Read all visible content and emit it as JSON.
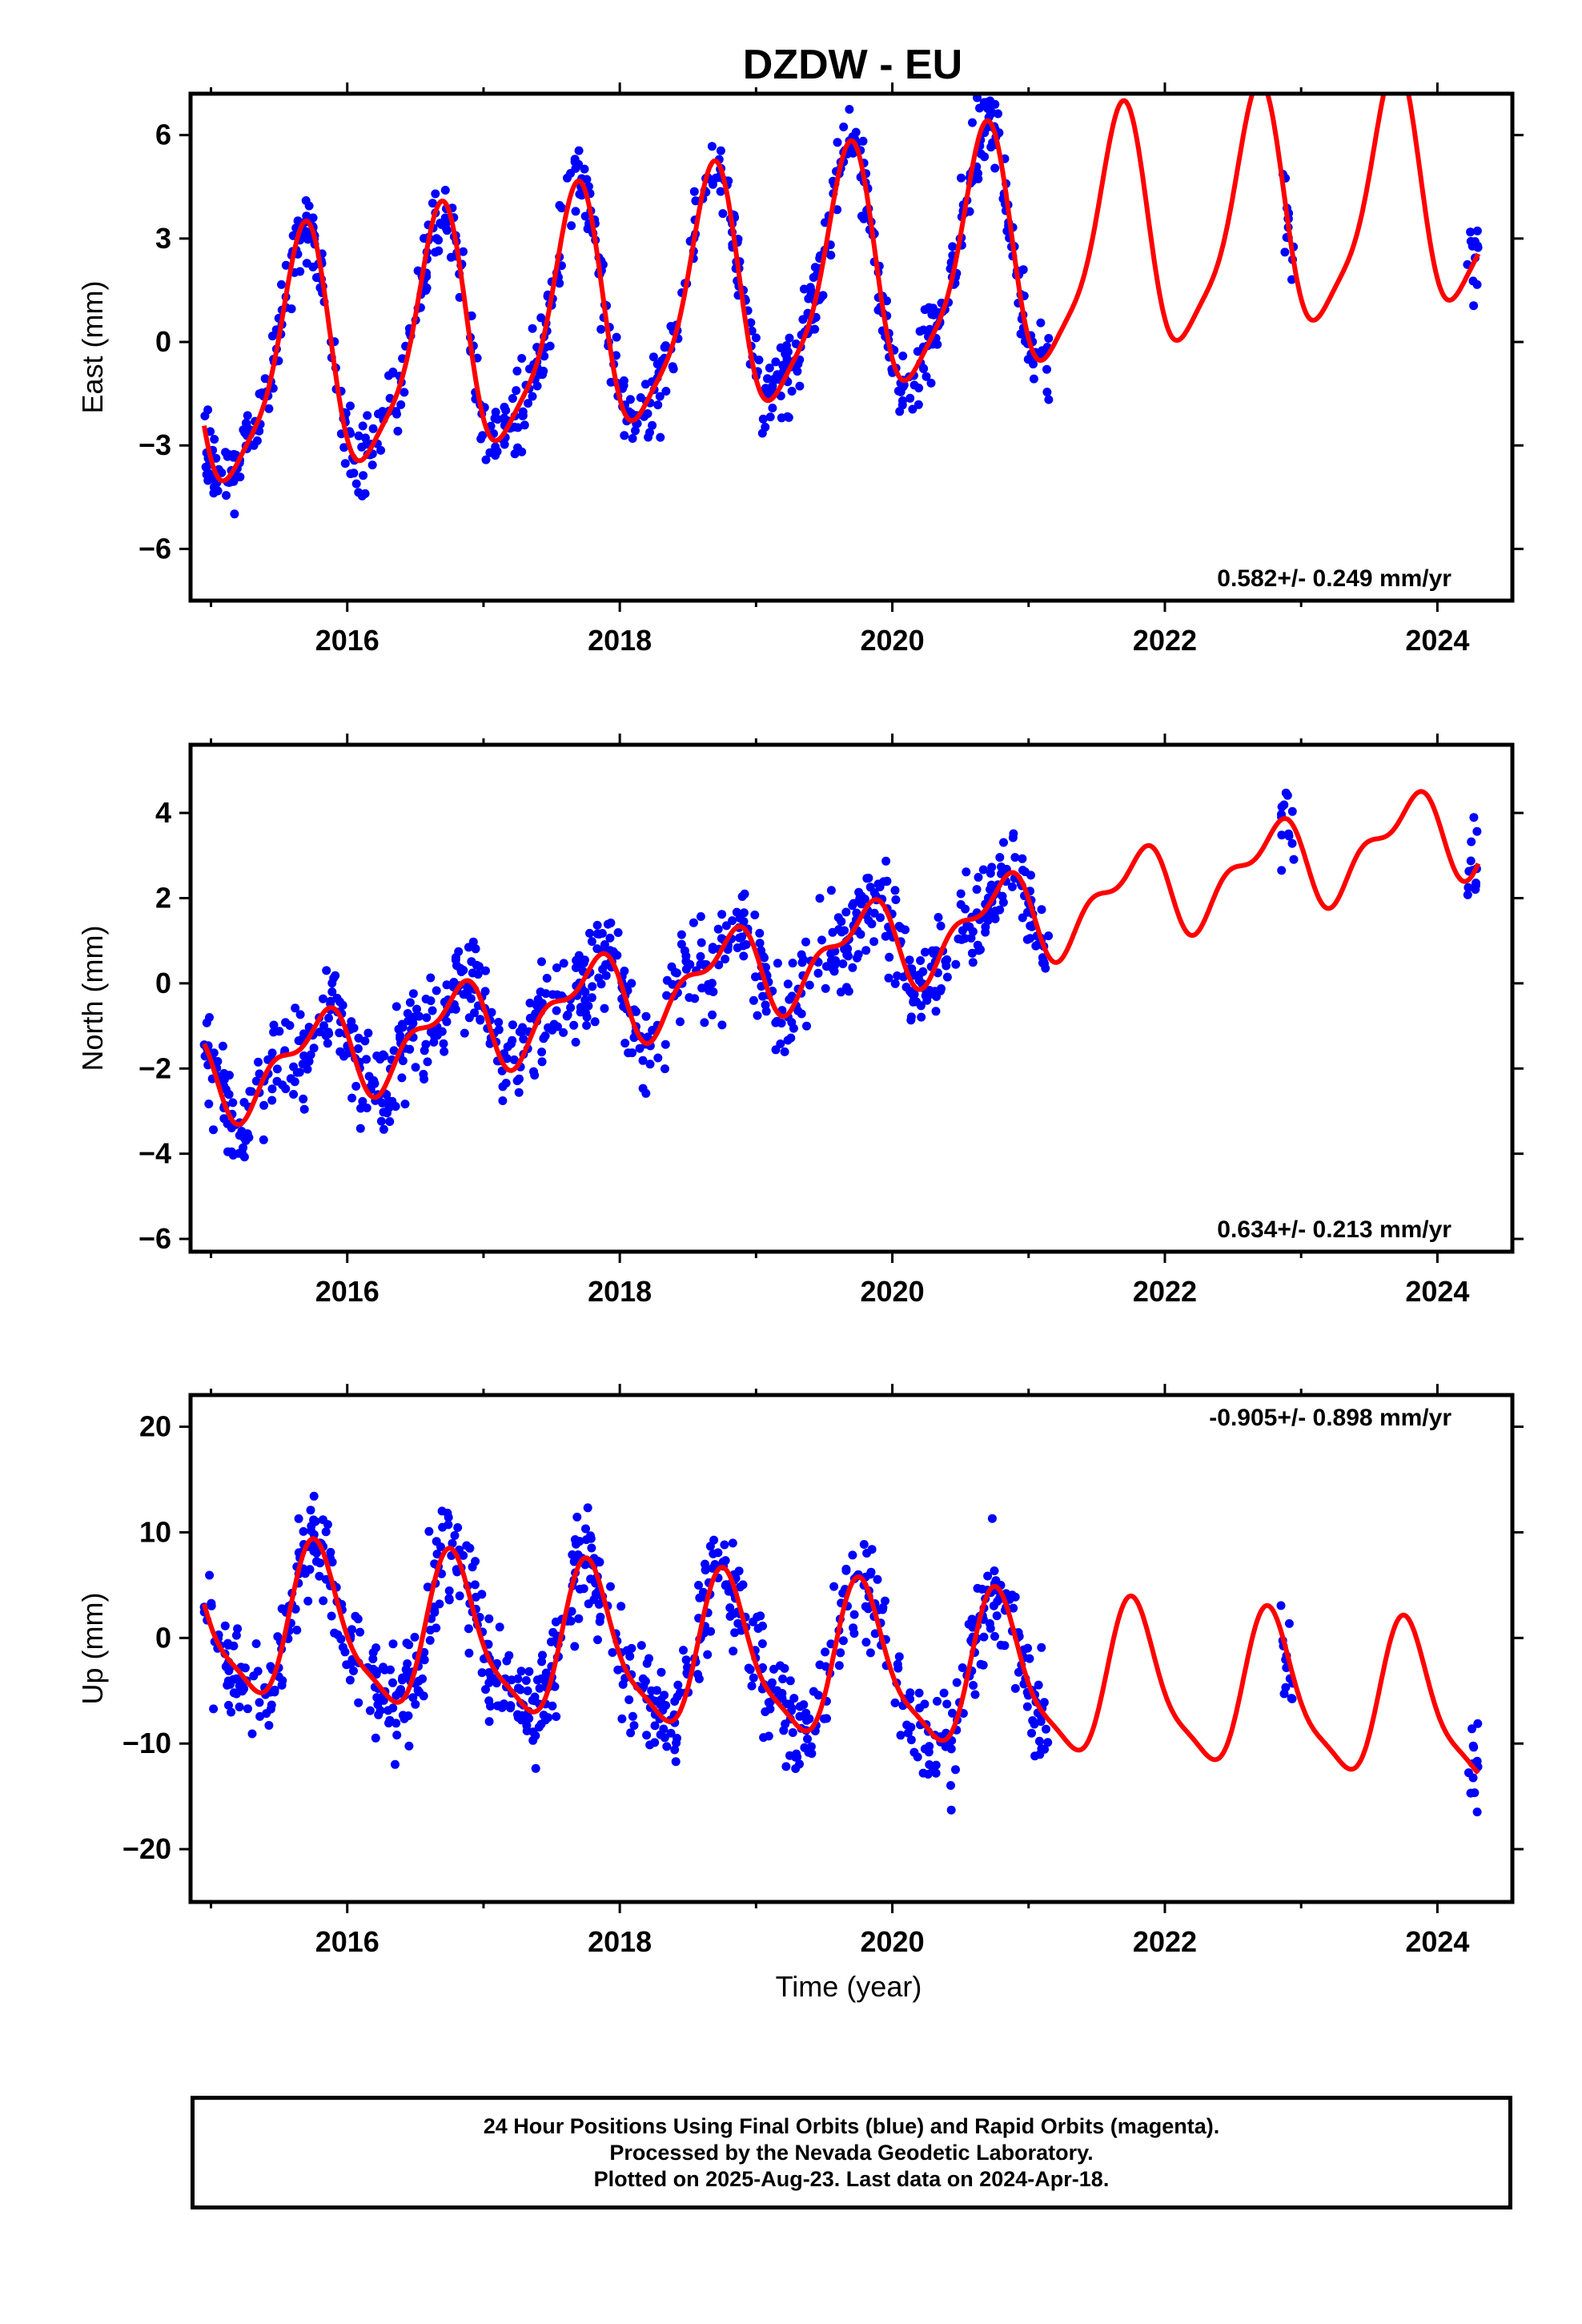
{
  "title": "DZDW - EU",
  "xlabel": "Time (year)",
  "footer": {
    "line1": "24 Hour Positions Using Final Orbits (blue) and Rapid Orbits (magenta).",
    "line2": "Processed by the Nevada Geodetic Laboratory.",
    "line3": "Plotted on 2025-Aug-23. Last data on 2024-Apr-18."
  },
  "colors": {
    "points": "#0000ff",
    "fit": "#ff0000",
    "frame": "#000000"
  },
  "chart_data": [
    {
      "type": "scatter",
      "ylabel": "East (mm)",
      "rate_label": "0.582+/- 0.249 mm/yr",
      "rate_position": "bottom-right",
      "xlim": [
        2014.85,
        2024.55
      ],
      "ylim": [
        -7.5,
        7.2
      ],
      "xticks": [
        2016,
        2018,
        2020,
        2022,
        2024
      ],
      "yticks": [
        -6,
        -3,
        0,
        3,
        6
      ],
      "series": [
        {
          "kind": "points",
          "segments": [
            [
              2014.95,
              2021.15
            ],
            [
              2022.85,
              2022.95
            ],
            [
              2024.22,
              2024.3
            ]
          ],
          "trend": {
            "a": -1.0,
            "rate": 0.582
          },
          "annual": [
            3.4,
            0.42
          ],
          "noise": 1.0
        },
        {
          "kind": "fit",
          "t_range": [
            2014.95,
            2024.3
          ],
          "trend": {
            "a": -1.0,
            "rate": 0.582
          },
          "annual": [
            3.4,
            0.42
          ],
          "semi": [
            0.8,
            0.1
          ]
        }
      ]
    },
    {
      "type": "scatter",
      "ylabel": "North (mm)",
      "rate_label": "0.634+/- 0.213 mm/yr",
      "rate_position": "bottom-right",
      "xlim": [
        2014.85,
        2024.55
      ],
      "ylim": [
        -6.3,
        5.6
      ],
      "xticks": [
        2016,
        2018,
        2020,
        2022,
        2024
      ],
      "yticks": [
        -6,
        -4,
        -2,
        0,
        2,
        4
      ],
      "series": [
        {
          "kind": "points",
          "segments": [
            [
              2014.95,
              2021.15
            ],
            [
              2022.85,
              2022.95
            ],
            [
              2024.22,
              2024.3
            ]
          ],
          "trend": {
            "a": -2.2,
            "rate": 0.634
          },
          "annual": [
            0.9,
            0.52
          ],
          "noise": 0.95
        },
        {
          "kind": "fit",
          "t_range": [
            2014.95,
            2024.3
          ],
          "trend": {
            "a": -2.2,
            "rate": 0.634
          },
          "annual": [
            0.9,
            0.52
          ],
          "semi": [
            0.45,
            0.3
          ]
        }
      ]
    },
    {
      "type": "scatter",
      "ylabel": "Up (mm)",
      "rate_label": "-0.905+/- 0.898 mm/yr",
      "rate_position": "top-right",
      "xlim": [
        2014.85,
        2024.55
      ],
      "ylim": [
        -25,
        23
      ],
      "xticks": [
        2016,
        2018,
        2020,
        2022,
        2024
      ],
      "yticks": [
        -20,
        -10,
        0,
        10,
        20
      ],
      "series": [
        {
          "kind": "points",
          "segments": [
            [
              2014.95,
              2021.15
            ],
            [
              2022.85,
              2022.95
            ],
            [
              2024.22,
              2024.3
            ]
          ],
          "trend": {
            "a": 1.5,
            "rate": -0.905
          },
          "annual": [
            7.0,
            0.53
          ],
          "noise": 4.2
        },
        {
          "kind": "fit",
          "t_range": [
            2014.95,
            2024.3
          ],
          "trend": {
            "a": 1.5,
            "rate": -0.905
          },
          "annual": [
            7.0,
            0.53
          ],
          "semi": [
            1.8,
            0.1
          ]
        }
      ]
    }
  ]
}
